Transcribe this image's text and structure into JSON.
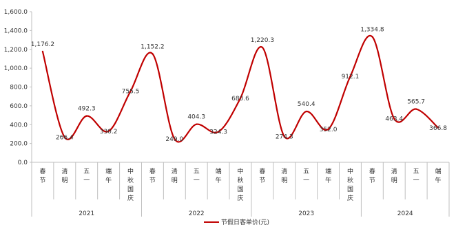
{
  "chart_data": {
    "type": "line",
    "title": "",
    "xlabel": "",
    "ylabel": "",
    "ylim": [
      0,
      1600
    ],
    "yticks": [
      "0.0",
      "200.0",
      "400.0",
      "600.0",
      "800.0",
      "1,000.0",
      "1,200.0",
      "1,400.0",
      "1,600.0"
    ],
    "ytick_values": [
      0,
      200,
      400,
      600,
      800,
      1000,
      1200,
      1400,
      1600
    ],
    "grid": false,
    "legend_position": "bottom",
    "series_color": "#c00000",
    "categories": [
      "春节",
      "清明",
      "五一",
      "端午",
      "中秋国庆",
      "春节",
      "清明",
      "五一",
      "端午",
      "中秋国庆",
      "春节",
      "清明",
      "五一",
      "端午",
      "中秋国庆",
      "春节",
      "清明",
      "五一",
      "端午"
    ],
    "groups": [
      {
        "label": "2021",
        "count": 5
      },
      {
        "label": "2022",
        "count": 5
      },
      {
        "label": "2023",
        "count": 5
      },
      {
        "label": "2024",
        "count": 4
      }
    ],
    "series": [
      {
        "name": "节假日客单价(元)",
        "values": [
          1176.2,
          266.4,
          492.3,
          330.2,
          755.5,
          1152.2,
          249.0,
          404.3,
          324.3,
          680.6,
          1220.3,
          274.3,
          540.4,
          352.0,
          912.1,
          1334.8,
          463.4,
          565.7,
          366.8
        ],
        "labels": [
          "1,176.2",
          "266.4",
          "492.3",
          "330.2",
          "755.5",
          "1,152.2",
          "249.0",
          "404.3",
          "324.3",
          "680.6",
          "1,220.3",
          "274.3",
          "540.4",
          "352.0",
          "912.1",
          "1,334.8",
          "463.4",
          "565.7",
          "366.8"
        ]
      }
    ]
  }
}
